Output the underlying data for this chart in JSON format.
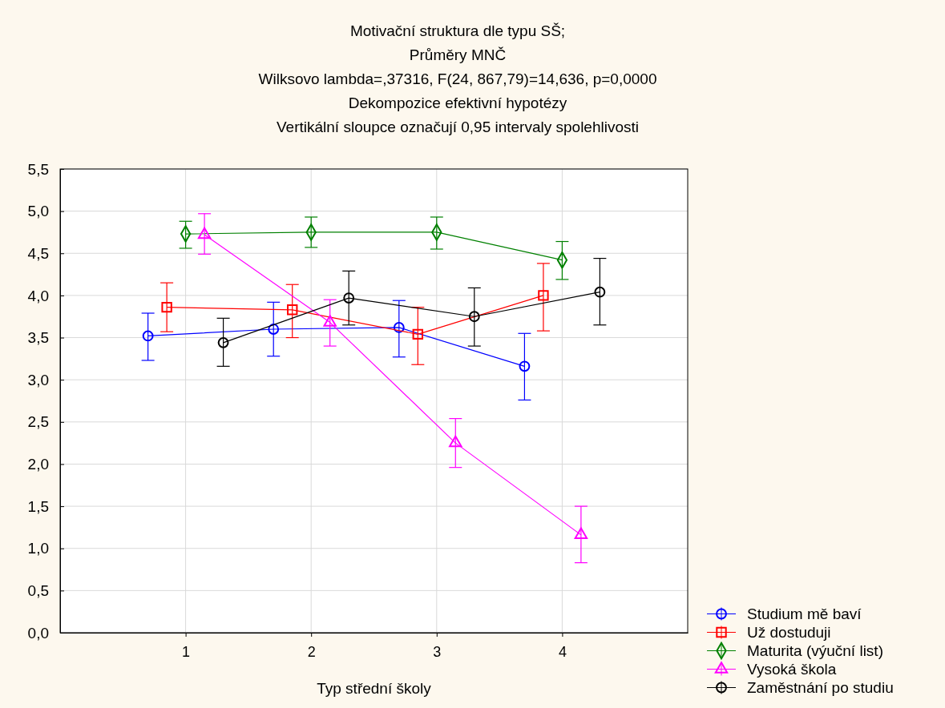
{
  "chart_data": {
    "type": "line",
    "title": "Motivační struktura dle typu SŠ;",
    "subtitle": "Průměry MNČ",
    "annotations": [
      "Wilksovo lambda=,37316, F(24, 867,79)=14,636, p=0,0000",
      "Dekompozice efektivní hypotézy",
      "Vertikální sloupce označují 0,95 intervaly spolehlivosti"
    ],
    "xlabel": "Typ střední školy",
    "xlim": [
      0,
      5
    ],
    "xticks": [
      1,
      2,
      3,
      4
    ],
    "ylim": [
      0,
      5.5
    ],
    "yticks": [
      {
        "value": 0,
        "label": "0,0"
      },
      {
        "value": 0.5,
        "label": "0,5"
      },
      {
        "value": 1,
        "label": "1,0"
      },
      {
        "value": 1.5,
        "label": "1,5"
      },
      {
        "value": 2,
        "label": "2,0"
      },
      {
        "value": 2.5,
        "label": "2,5"
      },
      {
        "value": 3,
        "label": "3,0"
      },
      {
        "value": 3.5,
        "label": "3,5"
      },
      {
        "value": 4,
        "label": "4,0"
      },
      {
        "value": 4.5,
        "label": "4,5"
      },
      {
        "value": 5,
        "label": "5,0"
      },
      {
        "value": 5.5,
        "label": "5,5"
      }
    ],
    "grid": true,
    "legend": "bottom right",
    "line_style": "solid",
    "series": [
      {
        "name": "Studium mě baví",
        "color": "#0000ff",
        "marker": "circle",
        "x": [
          0.7,
          1.7,
          2.7,
          3.7
        ],
        "values": [
          3.52,
          3.6,
          3.62,
          3.16
        ],
        "errors": [
          [
            3.23,
            3.79
          ],
          [
            3.28,
            3.92
          ],
          [
            3.27,
            3.94
          ],
          [
            2.76,
            3.55
          ]
        ]
      },
      {
        "name": "Už dostuduji",
        "color": "#ff0000",
        "marker": "square",
        "x": [
          0.85,
          1.85,
          2.85,
          3.85
        ],
        "values": [
          3.86,
          3.83,
          3.54,
          4.0
        ],
        "errors": [
          [
            3.57,
            4.15
          ],
          [
            3.5,
            4.13
          ],
          [
            3.18,
            3.86
          ],
          [
            3.58,
            4.38
          ]
        ]
      },
      {
        "name": "Maturita (výuční list)",
        "color": "#008000",
        "marker": "diamond",
        "x": [
          1,
          2,
          3,
          4
        ],
        "values": [
          4.73,
          4.75,
          4.75,
          4.42
        ],
        "errors": [
          [
            4.56,
            4.88
          ],
          [
            4.57,
            4.93
          ],
          [
            4.55,
            4.93
          ],
          [
            4.19,
            4.64
          ]
        ]
      },
      {
        "name": "Vysoká škola",
        "color": "#ff00ff",
        "marker": "triangle",
        "x": [
          1.15,
          2.15,
          3.15,
          4.15
        ],
        "values": [
          4.72,
          3.68,
          2.25,
          1.16
        ],
        "errors": [
          [
            4.49,
            4.97
          ],
          [
            3.4,
            3.95
          ],
          [
            1.96,
            2.54
          ],
          [
            0.83,
            1.5
          ]
        ]
      },
      {
        "name": "Zaměstnání po studiu",
        "color": "#000000",
        "marker": "circle",
        "x": [
          1.3,
          2.3,
          3.3,
          4.3
        ],
        "values": [
          3.44,
          3.97,
          3.75,
          4.04
        ],
        "errors": [
          [
            3.16,
            3.73
          ],
          [
            3.65,
            4.29
          ],
          [
            3.4,
            4.09
          ],
          [
            3.65,
            4.44
          ]
        ]
      }
    ]
  }
}
